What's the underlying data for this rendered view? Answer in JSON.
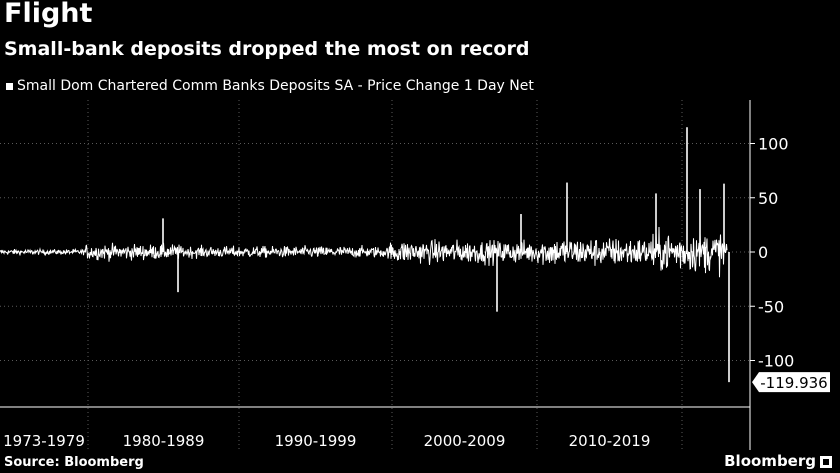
{
  "header": {
    "title": "Flight",
    "subtitle": "Small-bank deposits dropped the most on record"
  },
  "footer": {
    "source": "Source: Bloomberg",
    "brand": "Bloomberg"
  },
  "chart_data": {
    "type": "line",
    "title": "Flight",
    "subtitle": "Small-bank deposits dropped the most on record",
    "series": [
      {
        "name": "Small Dom Chartered Comm Banks Deposits SA - Price Change 1 Day Net",
        "color": "#ffffff",
        "notable_points": [
          {
            "x": "1980-1989",
            "y": 31
          },
          {
            "x": "1980-1989",
            "y": -37
          },
          {
            "x": "2000-2009",
            "y": -55
          },
          {
            "x": "2000-2009",
            "y": 35
          },
          {
            "x": "2010-2019",
            "y": 64
          },
          {
            "x": "2020-2023",
            "y": 54
          },
          {
            "x": "2020-2023",
            "y": 115
          },
          {
            "x": "2020-2023",
            "y": 58
          },
          {
            "x": "2020-2023",
            "y": 63
          },
          {
            "x": "2020-2023",
            "y": -119.936
          }
        ],
        "last_value": -119.936
      }
    ],
    "categories": [
      "1973-1979",
      "1980-1989",
      "1990-1999",
      "2000-2009",
      "2010-2019"
    ],
    "yticks": [
      100,
      50,
      0,
      -50,
      -100
    ],
    "ylim": [
      -137,
      137
    ],
    "last_value_label": "-119.936",
    "xlabel": "",
    "ylabel": "",
    "grid": true,
    "legend": "top-left"
  }
}
